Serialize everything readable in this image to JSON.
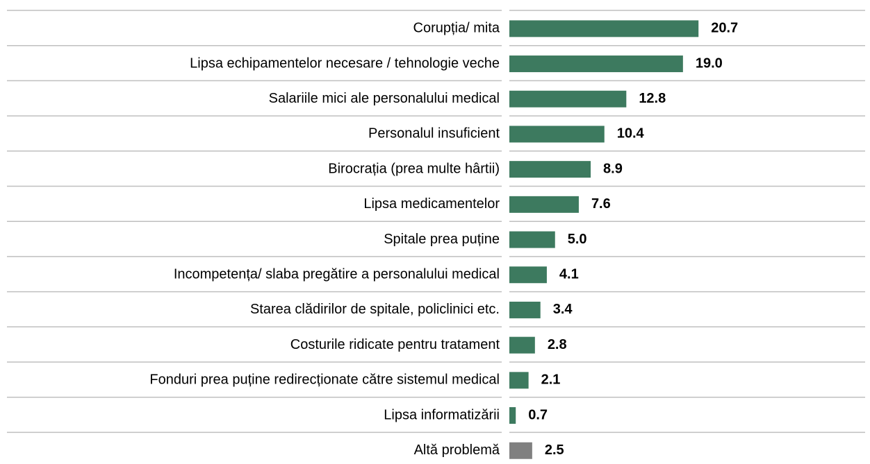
{
  "chart_data": {
    "type": "bar",
    "orientation": "horizontal",
    "categories": [
      "Corupția/ mita",
      "Lipsa echipamentelor necesare / tehnologie veche",
      "Salariile mici ale personalului medical",
      "Personalul insuficient",
      "Birocrația (prea multe hârtii)",
      "Lipsa medicamentelor",
      "Spitale prea puține",
      "Incompetența/ slaba pregătire a personalului medical",
      "Starea clădirilor de spitale, policlinici etc.",
      "Costurile ridicate pentru tratament",
      "Fonduri prea puține redirecționate către sistemul medical",
      "Lipsa informatizării",
      "Altă problemă"
    ],
    "values": [
      20.7,
      19,
      12.8,
      10.4,
      8.9,
      7.6,
      5,
      4.1,
      3.4,
      2.8,
      2.1,
      0.7,
      2.5
    ],
    "value_labels": [
      "20.7",
      "19.0",
      "12.8",
      "10.4",
      "8.9",
      "7.6",
      "5.0",
      "4.1",
      "3.4",
      "2.8",
      "2.1",
      "0.7",
      "2.5"
    ],
    "colors": [
      "#3d7a5f",
      "#3d7a5f",
      "#3d7a5f",
      "#3d7a5f",
      "#3d7a5f",
      "#3d7a5f",
      "#3d7a5f",
      "#3d7a5f",
      "#3d7a5f",
      "#3d7a5f",
      "#3d7a5f",
      "#3d7a5f",
      "#808080"
    ]
  }
}
